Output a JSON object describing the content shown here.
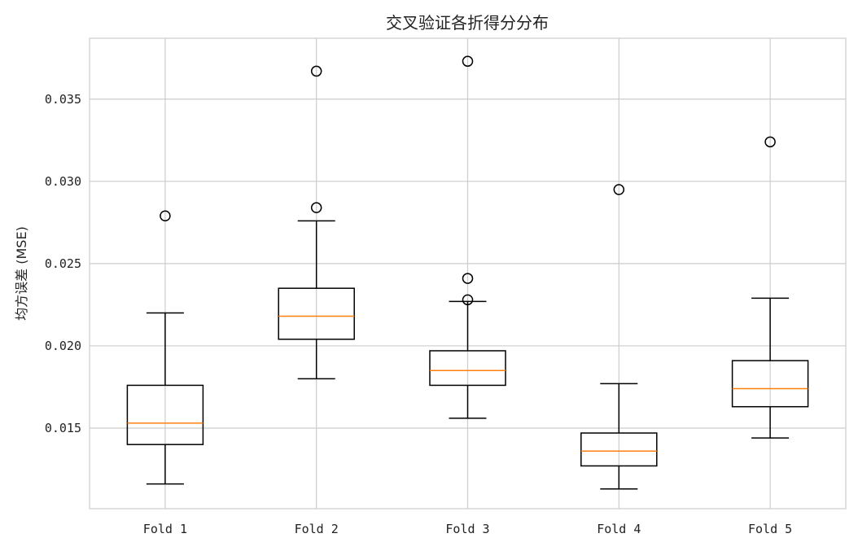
{
  "chart_data": {
    "type": "box",
    "title": "交叉验证各折得分分布",
    "xlabel": "",
    "ylabel": "均方误差 (MSE)",
    "categories": [
      "Fold 1",
      "Fold 2",
      "Fold 3",
      "Fold 4",
      "Fold 5"
    ],
    "ylim": [
      0.0101,
      0.0387
    ],
    "yticks": [
      0.015,
      0.02,
      0.025,
      0.03,
      0.035
    ],
    "ytick_labels": [
      "0.015",
      "0.020",
      "0.025",
      "0.030",
      "0.035"
    ],
    "grid": true,
    "colors": {
      "box": "#000000",
      "median": "#ff7f0e",
      "grid": "#cccccc",
      "outlier": "#000000"
    },
    "boxes": [
      {
        "name": "Fold 1",
        "whisker_low": 0.0116,
        "q1": 0.014,
        "median": 0.0153,
        "q3": 0.0176,
        "whisker_high": 0.022,
        "outliers": [
          0.0279
        ]
      },
      {
        "name": "Fold 2",
        "whisker_low": 0.018,
        "q1": 0.0204,
        "median": 0.0218,
        "q3": 0.0235,
        "whisker_high": 0.0276,
        "outliers": [
          0.0284,
          0.0367
        ]
      },
      {
        "name": "Fold 3",
        "whisker_low": 0.0156,
        "q1": 0.0176,
        "median": 0.0185,
        "q3": 0.0197,
        "whisker_high": 0.0227,
        "outliers": [
          0.0228,
          0.0241,
          0.0373
        ]
      },
      {
        "name": "Fold 4",
        "whisker_low": 0.0113,
        "q1": 0.0127,
        "median": 0.0136,
        "q3": 0.0147,
        "whisker_high": 0.0177,
        "outliers": [
          0.0295
        ]
      },
      {
        "name": "Fold 5",
        "whisker_low": 0.0144,
        "q1": 0.0163,
        "median": 0.0174,
        "q3": 0.0191,
        "whisker_high": 0.0229,
        "outliers": [
          0.0324
        ]
      }
    ]
  }
}
